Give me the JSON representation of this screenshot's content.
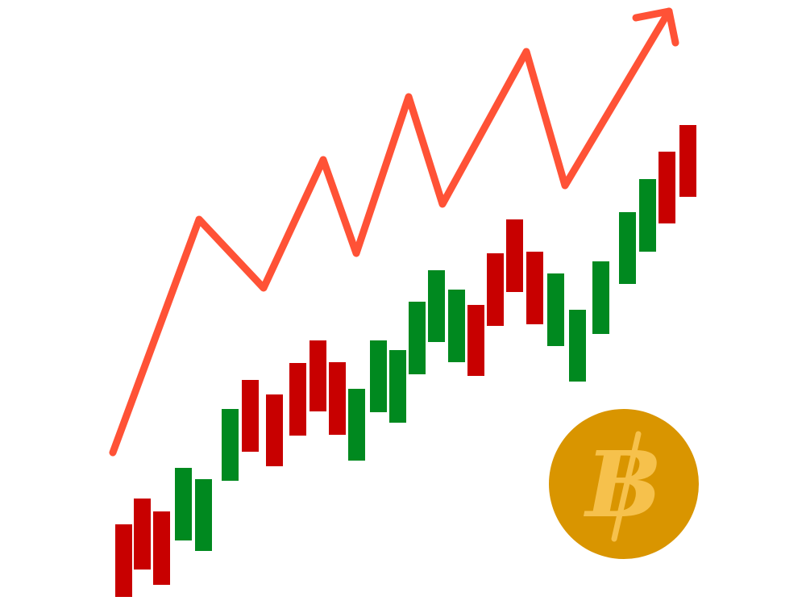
{
  "colors": {
    "background": "#ffffff",
    "trend_line": "#ff5236",
    "candle_up": "#00891f",
    "candle_down": "#c80000",
    "coin_fill": "#d99500",
    "coin_symbol": "#f6c14c"
  },
  "coin": {
    "icon": "bitcoin-coin-icon",
    "symbol": "B"
  },
  "arrow": {
    "icon": "trend-up-arrow-icon"
  }
}
